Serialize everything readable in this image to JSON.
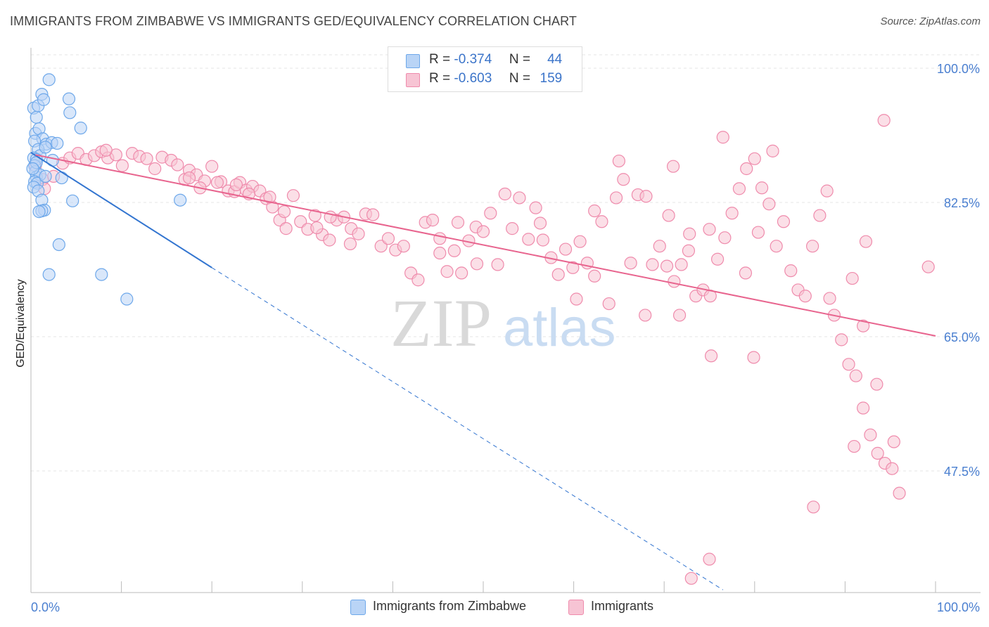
{
  "title": "IMMIGRANTS FROM ZIMBABWE VS IMMIGRANTS GED/EQUIVALENCY CORRELATION CHART",
  "source": "Source: ZipAtlas.com",
  "watermark": {
    "zip": "ZIP",
    "atlas": "atlas"
  },
  "colors": {
    "blue": "#6ea8ea",
    "blue_fill": "#b9d4f6",
    "blue_line": "#3375d0",
    "pink": "#ef8bac",
    "pink_fill": "#f7c4d4",
    "pink_line": "#e8648e",
    "tick_label": "#4a7fd0"
  },
  "legend_top": [
    {
      "r_label": "R =",
      "r_value": "-0.374",
      "n_label": "N =",
      "n_value": "44"
    },
    {
      "r_label": "R =",
      "r_value": "-0.603",
      "n_label": "N =",
      "n_value": "159"
    }
  ],
  "legend_bottom": [
    "Immigrants from Zimbabwe",
    "Immigrants"
  ],
  "chart_data": {
    "type": "scatter",
    "xlabel": "",
    "ylabel": "GED/Equivalency",
    "xlim": [
      0,
      100
    ],
    "ylim": [
      30,
      102
    ],
    "x_tick_labels": [
      "0.0%",
      "100.0%"
    ],
    "y_ticks": [
      47.5,
      65.0,
      82.5,
      100.0
    ],
    "y_tick_labels": [
      "47.5%",
      "65.0%",
      "82.5%",
      "100.0%"
    ],
    "grid": true,
    "series": [
      {
        "name": "Immigrants from Zimbabwe",
        "color": "#6ea8ea",
        "trend": {
          "x": [
            0,
            20
          ],
          "y": [
            89,
            74
          ],
          "dashed_extension_to": [
            76.5,
            32
          ]
        },
        "points": [
          [
            0.3,
            94.8
          ],
          [
            0.6,
            93.6
          ],
          [
            0.8,
            95.1
          ],
          [
            1.2,
            96.6
          ],
          [
            1.4,
            95.9
          ],
          [
            2.0,
            98.5
          ],
          [
            4.2,
            96.0
          ],
          [
            4.3,
            94.2
          ],
          [
            5.5,
            92.2
          ],
          [
            0.5,
            91.5
          ],
          [
            0.9,
            92.1
          ],
          [
            1.3,
            90.8
          ],
          [
            1.7,
            90.1
          ],
          [
            2.3,
            90.3
          ],
          [
            0.4,
            90.5
          ],
          [
            0.8,
            89.4
          ],
          [
            1.0,
            88.6
          ],
          [
            1.6,
            89.7
          ],
          [
            0.3,
            88.3
          ],
          [
            0.6,
            88.1
          ],
          [
            0.4,
            87.3
          ],
          [
            0.5,
            86.5
          ],
          [
            0.6,
            85.8
          ],
          [
            1.0,
            86.1
          ],
          [
            0.4,
            85.2
          ],
          [
            0.7,
            85.0
          ],
          [
            1.6,
            85.9
          ],
          [
            2.4,
            88.0
          ],
          [
            3.4,
            85.7
          ],
          [
            0.3,
            84.5
          ],
          [
            0.8,
            84.0
          ],
          [
            1.2,
            82.8
          ],
          [
            4.6,
            82.7
          ],
          [
            16.5,
            82.8
          ],
          [
            1.5,
            81.5
          ],
          [
            1.2,
            81.4
          ],
          [
            0.9,
            81.3
          ],
          [
            3.1,
            77.0
          ],
          [
            2.0,
            73.1
          ],
          [
            7.8,
            73.1
          ],
          [
            10.6,
            69.9
          ],
          [
            0.6,
            87.7
          ],
          [
            0.2,
            86.9
          ],
          [
            2.9,
            90.2
          ]
        ]
      },
      {
        "name": "Immigrants",
        "color": "#ef8bac",
        "trend": {
          "x": [
            0.5,
            100
          ],
          "y": [
            88.7,
            65.1
          ]
        },
        "points": [
          [
            0.5,
            87.3
          ],
          [
            1.3,
            85.5
          ],
          [
            1.5,
            84.3
          ],
          [
            2.5,
            85.9
          ],
          [
            3.5,
            87.6
          ],
          [
            4.3,
            88.3
          ],
          [
            5.2,
            88.9
          ],
          [
            6.1,
            88.1
          ],
          [
            7.0,
            88.6
          ],
          [
            7.8,
            89.1
          ],
          [
            8.5,
            88.3
          ],
          [
            9.4,
            88.7
          ],
          [
            10.1,
            87.3
          ],
          [
            11.2,
            88.9
          ],
          [
            12.0,
            88.5
          ],
          [
            12.8,
            88.2
          ],
          [
            13.7,
            86.9
          ],
          [
            14.5,
            88.4
          ],
          [
            15.5,
            88.0
          ],
          [
            16.2,
            87.4
          ],
          [
            17.0,
            85.5
          ],
          [
            17.5,
            86.7
          ],
          [
            18.3,
            86.1
          ],
          [
            19.2,
            85.3
          ],
          [
            20.0,
            87.2
          ],
          [
            21.0,
            85.2
          ],
          [
            21.8,
            84.0
          ],
          [
            22.5,
            83.9
          ],
          [
            23.1,
            85.1
          ],
          [
            23.8,
            84.1
          ],
          [
            24.5,
            84.6
          ],
          [
            25.3,
            84.0
          ],
          [
            26.0,
            83.0
          ],
          [
            26.7,
            81.9
          ],
          [
            27.5,
            80.2
          ],
          [
            28.2,
            79.1
          ],
          [
            29.0,
            83.4
          ],
          [
            29.8,
            80.0
          ],
          [
            30.6,
            79.0
          ],
          [
            31.4,
            80.8
          ],
          [
            32.2,
            78.3
          ],
          [
            33.0,
            77.6
          ],
          [
            33.8,
            80.2
          ],
          [
            34.6,
            80.6
          ],
          [
            35.4,
            79.1
          ],
          [
            36.2,
            78.4
          ],
          [
            37.0,
            81.0
          ],
          [
            37.8,
            80.9
          ],
          [
            38.7,
            76.8
          ],
          [
            39.5,
            77.8
          ],
          [
            40.3,
            76.3
          ],
          [
            41.2,
            76.8
          ],
          [
            42.0,
            73.3
          ],
          [
            42.8,
            72.4
          ],
          [
            43.6,
            79.9
          ],
          [
            44.4,
            80.2
          ],
          [
            45.2,
            75.9
          ],
          [
            46.0,
            73.5
          ],
          [
            46.8,
            76.2
          ],
          [
            47.6,
            73.3
          ],
          [
            48.4,
            77.5
          ],
          [
            49.2,
            79.3
          ],
          [
            50.0,
            78.7
          ],
          [
            50.8,
            81.1
          ],
          [
            51.6,
            74.4
          ],
          [
            52.4,
            83.6
          ],
          [
            53.2,
            79.1
          ],
          [
            54.0,
            83.1
          ],
          [
            55.0,
            77.7
          ],
          [
            55.8,
            81.8
          ],
          [
            56.6,
            77.6
          ],
          [
            57.5,
            75.3
          ],
          [
            58.3,
            73.1
          ],
          [
            59.1,
            76.4
          ],
          [
            59.9,
            74.0
          ],
          [
            60.7,
            77.4
          ],
          [
            61.5,
            74.6
          ],
          [
            62.3,
            72.9
          ],
          [
            63.1,
            80.0
          ],
          [
            63.9,
            69.3
          ],
          [
            64.7,
            83.1
          ],
          [
            65.5,
            85.5
          ],
          [
            66.3,
            74.6
          ],
          [
            67.1,
            83.5
          ],
          [
            67.9,
            67.8
          ],
          [
            68.7,
            74.4
          ],
          [
            69.5,
            76.8
          ],
          [
            70.3,
            74.2
          ],
          [
            71.1,
            72.2
          ],
          [
            71.9,
            74.4
          ],
          [
            72.7,
            76.2
          ],
          [
            73.5,
            70.3
          ],
          [
            74.3,
            71.1
          ],
          [
            75.1,
            70.3
          ],
          [
            75.9,
            75.1
          ],
          [
            76.7,
            77.9
          ],
          [
            77.5,
            81.1
          ],
          [
            78.3,
            84.3
          ],
          [
            79.1,
            86.9
          ],
          [
            80.0,
            88.2
          ],
          [
            80.8,
            84.4
          ],
          [
            81.6,
            82.3
          ],
          [
            82.4,
            76.8
          ],
          [
            83.2,
            80.0
          ],
          [
            84.0,
            73.6
          ],
          [
            84.8,
            71.1
          ],
          [
            85.6,
            70.3
          ],
          [
            86.4,
            76.8
          ],
          [
            87.2,
            80.8
          ],
          [
            88.0,
            84.0
          ],
          [
            88.8,
            67.8
          ],
          [
            89.6,
            64.6
          ],
          [
            90.4,
            61.4
          ],
          [
            91.2,
            59.9
          ],
          [
            92.0,
            55.7
          ],
          [
            92.8,
            52.2
          ],
          [
            93.6,
            49.8
          ],
          [
            94.4,
            48.5
          ],
          [
            95.2,
            47.8
          ],
          [
            96.0,
            44.6
          ],
          [
            76.5,
            91.0
          ],
          [
            82.0,
            89.2
          ],
          [
            65.0,
            87.9
          ],
          [
            71.0,
            87.2
          ],
          [
            80.4,
            78.6
          ],
          [
            72.8,
            78.4
          ],
          [
            94.3,
            93.2
          ],
          [
            75.0,
            36.0
          ],
          [
            73.0,
            33.5
          ],
          [
            75.0,
            79.0
          ],
          [
            79.0,
            73.3
          ],
          [
            79.9,
            62.3
          ],
          [
            75.2,
            62.5
          ],
          [
            60.3,
            69.9
          ],
          [
            71.7,
            67.8
          ],
          [
            86.5,
            42.8
          ],
          [
            95.4,
            51.3
          ],
          [
            91.0,
            50.7
          ],
          [
            99.2,
            74.1
          ],
          [
            93.5,
            58.8
          ],
          [
            90.8,
            72.6
          ],
          [
            88.3,
            70.0
          ],
          [
            92.0,
            66.4
          ],
          [
            92.3,
            77.4
          ],
          [
            70.5,
            80.8
          ],
          [
            68.0,
            83.3
          ],
          [
            62.3,
            81.4
          ],
          [
            56.3,
            79.8
          ],
          [
            49.3,
            74.5
          ],
          [
            47.2,
            79.9
          ],
          [
            45.2,
            77.8
          ],
          [
            35.3,
            77.1
          ],
          [
            33.1,
            80.6
          ],
          [
            31.6,
            79.2
          ],
          [
            28.0,
            81.3
          ],
          [
            26.4,
            83.2
          ],
          [
            24.1,
            83.6
          ],
          [
            22.7,
            84.8
          ],
          [
            20.6,
            85.1
          ],
          [
            18.7,
            84.4
          ],
          [
            8.3,
            89.3
          ],
          [
            17.5,
            85.7
          ]
        ]
      }
    ]
  }
}
